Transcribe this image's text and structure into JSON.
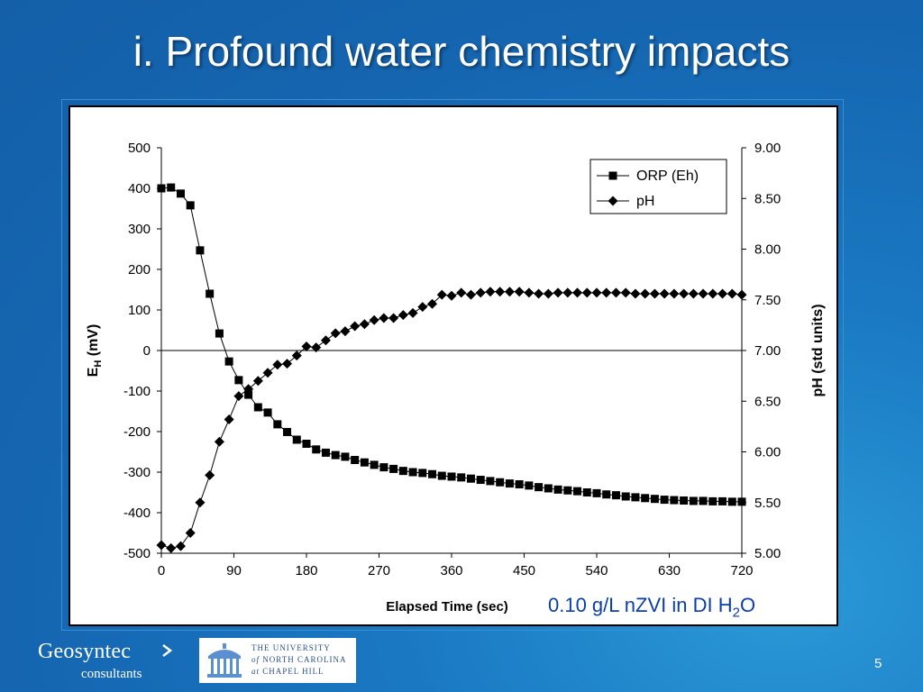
{
  "slide": {
    "title": "i. Profound water chemistry impacts",
    "caption_text": "0.10 g/L nZVI in DI H",
    "caption_sub": "2",
    "caption_end": "O",
    "page_number": "5"
  },
  "logos": {
    "geosyntec_name": "Geosyntec",
    "geosyntec_sub": "consultants",
    "unc_line1": "THE UNIVERSITY",
    "unc_line2_of": "of",
    "unc_line2": "NORTH CAROLINA",
    "unc_line3_at": "at",
    "unc_line3": "CHAPEL HILL"
  },
  "colors": {
    "background": "#1a6fbb",
    "title_text": "#ffffff",
    "caption_text": "#0a3ea8",
    "series": "#000000"
  },
  "chart_data": {
    "type": "line",
    "title": "",
    "xlabel": "Elapsed Time (sec)",
    "ylabel_main": "E",
    "ylabel_sub": "H",
    "ylabel_unit": " (mV)",
    "y2label": "pH (std units)",
    "xlim": [
      0,
      720
    ],
    "ylim": [
      -500,
      500
    ],
    "y2lim": [
      5.0,
      9.0
    ],
    "x_ticks": [
      "0",
      "90",
      "180",
      "270",
      "360",
      "450",
      "540",
      "630",
      "720"
    ],
    "y_ticks": [
      "500",
      "400",
      "300",
      "200",
      "100",
      "0",
      "-100",
      "-200",
      "-300",
      "-400",
      "-500"
    ],
    "y2_ticks": [
      "9.00",
      "8.50",
      "8.00",
      "7.50",
      "7.00",
      "6.50",
      "6.00",
      "5.50",
      "5.00"
    ],
    "grid": false,
    "legend_position": "top-right",
    "series": [
      {
        "name": "ORP (Eh)",
        "axis": "left",
        "marker": "square",
        "x": [
          0,
          12,
          24,
          36,
          48,
          60,
          72,
          84,
          96,
          108,
          120,
          132,
          144,
          156,
          168,
          180,
          192,
          204,
          216,
          228,
          240,
          252,
          264,
          276,
          288,
          300,
          312,
          324,
          336,
          348,
          360,
          372,
          384,
          396,
          408,
          420,
          432,
          444,
          456,
          468,
          480,
          492,
          504,
          516,
          528,
          540,
          552,
          564,
          576,
          588,
          600,
          612,
          624,
          636,
          648,
          660,
          672,
          684,
          696,
          708,
          720
        ],
        "values": [
          400,
          402,
          387,
          358,
          247,
          140,
          42,
          -27,
          -73,
          -109,
          -140,
          -153,
          -182,
          -201,
          -220,
          -230,
          -244,
          -252,
          -258,
          -262,
          -270,
          -276,
          -282,
          -288,
          -292,
          -297,
          -300,
          -302,
          -305,
          -309,
          -311,
          -313,
          -316,
          -319,
          -322,
          -325,
          -328,
          -330,
          -333,
          -337,
          -340,
          -343,
          -345,
          -347,
          -350,
          -352,
          -355,
          -357,
          -360,
          -362,
          -364,
          -366,
          -368,
          -369,
          -370,
          -371,
          -371,
          -372,
          -372,
          -373,
          -373
        ]
      },
      {
        "name": "pH",
        "axis": "right",
        "marker": "diamond",
        "x": [
          0,
          12,
          24,
          36,
          48,
          60,
          72,
          84,
          96,
          108,
          120,
          132,
          144,
          156,
          168,
          180,
          192,
          204,
          216,
          228,
          240,
          252,
          264,
          276,
          288,
          300,
          312,
          324,
          336,
          348,
          360,
          372,
          384,
          396,
          408,
          420,
          432,
          444,
          456,
          468,
          480,
          492,
          504,
          516,
          528,
          540,
          552,
          564,
          576,
          588,
          600,
          612,
          624,
          636,
          648,
          660,
          672,
          684,
          696,
          708,
          720
        ],
        "values": [
          5.08,
          5.05,
          5.07,
          5.2,
          5.5,
          5.77,
          6.1,
          6.32,
          6.55,
          6.62,
          6.7,
          6.78,
          6.86,
          6.87,
          6.95,
          7.04,
          7.03,
          7.1,
          7.17,
          7.19,
          7.24,
          7.26,
          7.3,
          7.32,
          7.32,
          7.35,
          7.37,
          7.43,
          7.46,
          7.55,
          7.54,
          7.57,
          7.55,
          7.57,
          7.58,
          7.58,
          7.58,
          7.58,
          7.57,
          7.56,
          7.56,
          7.57,
          7.57,
          7.57,
          7.57,
          7.57,
          7.57,
          7.57,
          7.57,
          7.56,
          7.56,
          7.56,
          7.56,
          7.56,
          7.56,
          7.56,
          7.56,
          7.56,
          7.56,
          7.56,
          7.55
        ]
      }
    ]
  }
}
